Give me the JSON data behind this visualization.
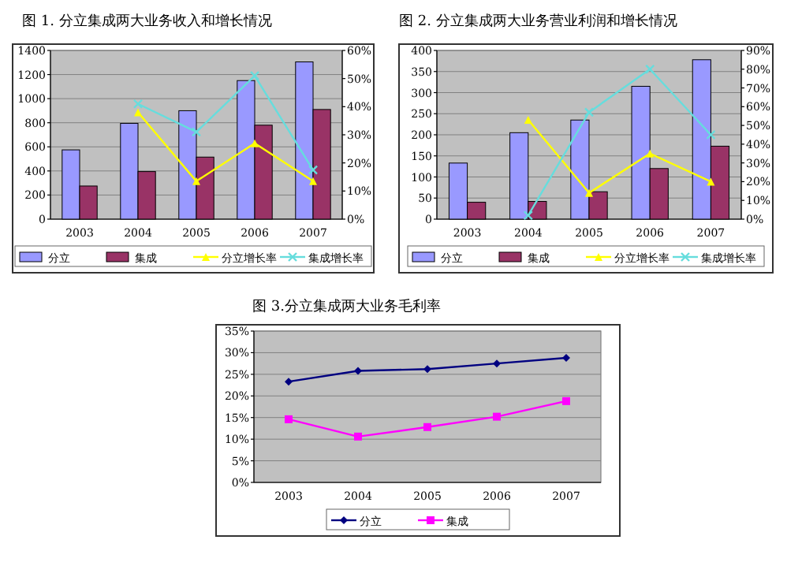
{
  "chart_data": [
    {
      "type": "bar",
      "title": "图 1.  分立集成两大业务收入和增长情况",
      "categories": [
        "2003",
        "2004",
        "2005",
        "2006",
        "2007"
      ],
      "grid": "y",
      "legend": "bottom",
      "ylim": [
        0,
        1400
      ],
      "yticks": [
        0,
        200,
        400,
        600,
        800,
        1000,
        1200,
        1400
      ],
      "y2lim": [
        0,
        60
      ],
      "y2ticks": [
        {
          "value": 0,
          "label": "0%"
        },
        {
          "value": 10,
          "label": "10%"
        },
        {
          "value": 20,
          "label": "20%"
        },
        {
          "value": 30,
          "label": "30%"
        },
        {
          "value": 40,
          "label": "40%"
        },
        {
          "value": 50,
          "label": "50%"
        },
        {
          "value": 60,
          "label": "60%"
        }
      ],
      "series": [
        {
          "name": "分立",
          "color": "#9999ff",
          "values": [
            575,
            795,
            900,
            1150,
            1305
          ]
        },
        {
          "name": "集成",
          "color": "#993366",
          "values": [
            275,
            395,
            515,
            780,
            910
          ]
        },
        {
          "name": "分立增长率",
          "type": "line",
          "axis": "y2",
          "marker": "triangle",
          "color": "#ffff00",
          "values": [
            null,
            38,
            13.5,
            27,
            13.5
          ]
        },
        {
          "name": "集成增长率",
          "type": "line",
          "axis": "y2",
          "marker": "cross",
          "color": "#66dddd",
          "values": [
            null,
            41,
            31,
            51,
            17.5
          ]
        }
      ]
    },
    {
      "type": "bar",
      "title": "图 2.  分立集成两大业务营业利润和增长情况",
      "categories": [
        "2003",
        "2004",
        "2005",
        "2006",
        "2007"
      ],
      "grid": "y",
      "legend": "bottom",
      "ylim": [
        0,
        400
      ],
      "yticks": [
        0,
        50,
        100,
        150,
        200,
        250,
        300,
        350,
        400
      ],
      "y2lim": [
        0,
        90
      ],
      "y2ticks": [
        {
          "value": 0,
          "label": "0%"
        },
        {
          "value": 10,
          "label": "10%"
        },
        {
          "value": 20,
          "label": "20%"
        },
        {
          "value": 30,
          "label": "30%"
        },
        {
          "value": 40,
          "label": "40%"
        },
        {
          "value": 50,
          "label": "50%"
        },
        {
          "value": 60,
          "label": "60%"
        },
        {
          "value": 70,
          "label": "70%"
        },
        {
          "value": 80,
          "label": "80%"
        },
        {
          "value": 90,
          "label": "90%"
        }
      ],
      "series": [
        {
          "name": "分立",
          "color": "#9999ff",
          "values": [
            133,
            205,
            235,
            315,
            378
          ]
        },
        {
          "name": "集成",
          "color": "#993366",
          "values": [
            40,
            42,
            65,
            120,
            173
          ]
        },
        {
          "name": "分立增长率",
          "type": "line",
          "axis": "y2",
          "marker": "triangle",
          "color": "#ffff00",
          "values": [
            null,
            53,
            14,
            35,
            20
          ]
        },
        {
          "name": "集成增长率",
          "type": "line",
          "axis": "y2",
          "marker": "cross",
          "color": "#66dddd",
          "values": [
            null,
            2,
            57,
            80,
            45
          ]
        }
      ]
    },
    {
      "type": "line",
      "title": "图 3.分立集成两大业务毛利率",
      "categories": [
        "2003",
        "2004",
        "2005",
        "2006",
        "2007"
      ],
      "grid": "y",
      "legend": "bottom",
      "ylim": [
        0,
        35
      ],
      "yticks": [
        {
          "value": 0,
          "label": "0%"
        },
        {
          "value": 5,
          "label": "5%"
        },
        {
          "value": 10,
          "label": "10%"
        },
        {
          "value": 15,
          "label": "15%"
        },
        {
          "value": 20,
          "label": "20%"
        },
        {
          "value": 25,
          "label": "25%"
        },
        {
          "value": 30,
          "label": "30%"
        },
        {
          "value": 35,
          "label": "35%"
        }
      ],
      "series": [
        {
          "name": "分立",
          "marker": "diamond",
          "color": "#000080",
          "values": [
            23.3,
            25.8,
            26.2,
            27.5,
            28.8
          ]
        },
        {
          "name": "集成",
          "marker": "square",
          "color": "#ff00ff",
          "values": [
            14.6,
            10.6,
            12.8,
            15.2,
            18.8
          ]
        }
      ]
    }
  ]
}
